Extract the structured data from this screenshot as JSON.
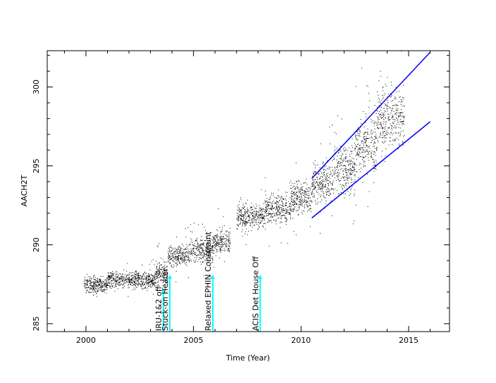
{
  "chart_data": {
    "type": "scatter",
    "title": "",
    "xlabel": "Time (Year)",
    "ylabel": "AACH2T",
    "xlim": [
      1998.2,
      2016.9
    ],
    "ylim": [
      284.5,
      302.3
    ],
    "grid": false,
    "x_ticks": [
      {
        "value": 2000,
        "label": "2000"
      },
      {
        "value": 2005,
        "label": "2005"
      },
      {
        "value": 2010,
        "label": "2010"
      },
      {
        "value": 2015,
        "label": "2015"
      }
    ],
    "y_ticks": [
      {
        "value": 285,
        "label": "285"
      },
      {
        "value": 290,
        "label": "290"
      },
      {
        "value": 295,
        "label": "295"
      },
      {
        "value": 300,
        "label": "300"
      }
    ],
    "point_color": "#000000",
    "trend_color": "#0000ff",
    "marker_color": "#00ffff",
    "data_segments": [
      {
        "x_start": 1999.9,
        "x_end": 2001.0,
        "y_center": 287.5,
        "spread": 0.4
      },
      {
        "x_start": 2001.0,
        "x_end": 2003.2,
        "y_center": 287.8,
        "spread": 0.4
      },
      {
        "x_start": 2003.2,
        "x_end": 2003.8,
        "y_center": 288.2,
        "spread": 0.6
      },
      {
        "x_start": 2003.8,
        "x_end": 2004.8,
        "y_center": 289.3,
        "spread": 0.5
      },
      {
        "x_start": 2004.8,
        "x_end": 2005.9,
        "y_center": 289.7,
        "spread": 0.6
      },
      {
        "x_start": 2005.9,
        "x_end": 2006.7,
        "y_center": 290.2,
        "spread": 0.6
      },
      {
        "x_start": 2007.0,
        "x_end": 2008.3,
        "y_center": 291.8,
        "spread": 0.6
      },
      {
        "x_start": 2008.3,
        "x_end": 2009.5,
        "y_center": 292.3,
        "spread": 0.7
      },
      {
        "x_start": 2009.5,
        "x_end": 2010.5,
        "y_center": 293.0,
        "spread": 0.8
      },
      {
        "x_start": 2010.5,
        "x_end": 2011.5,
        "y_center": 294.0,
        "spread": 1.0
      },
      {
        "x_start": 2011.5,
        "x_end": 2012.5,
        "y_center": 294.8,
        "spread": 1.2
      },
      {
        "x_start": 2012.5,
        "x_end": 2013.5,
        "y_center": 296.3,
        "spread": 1.4
      },
      {
        "x_start": 2013.5,
        "x_end": 2014.8,
        "y_center": 298.0,
        "spread": 1.5
      }
    ],
    "trend_lines": [
      {
        "name": "upper",
        "x": [
          2010.5,
          2016.0
        ],
        "y": [
          294.2,
          302.2
        ]
      },
      {
        "name": "lower",
        "x": [
          2010.5,
          2016.0
        ],
        "y": [
          291.7,
          297.8
        ]
      }
    ],
    "annotations": [
      {
        "x": 2003.6,
        "label": "IRU-1&2 off",
        "y_top": 287.2
      },
      {
        "x": 2003.9,
        "label": "Stuck-on Heater",
        "y_top": 288.1
      },
      {
        "x": 2005.9,
        "label": "Relaxed EPHIN Constraint",
        "y_top": 288.1
      },
      {
        "x": 2008.1,
        "label": "ACIS Det House Off",
        "y_top": 288.1
      }
    ]
  }
}
